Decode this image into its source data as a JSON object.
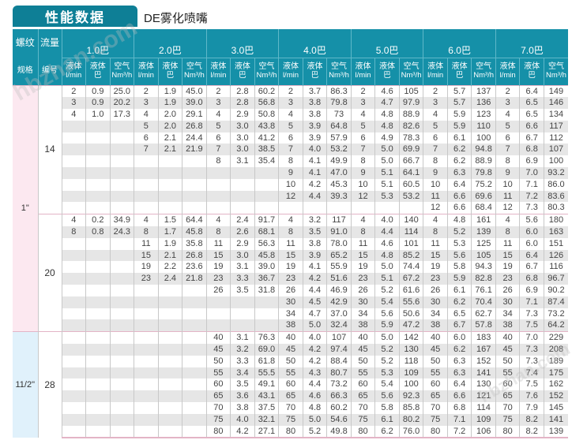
{
  "title": "性能数据",
  "subtitle": "DE雾化喷嘴",
  "watermark": "hbzhan.com",
  "colors": {
    "header_bg": "#1590a8",
    "title_bg": "#0e7f96",
    "pink": "#fce8f0",
    "blue": "#e0f1fb",
    "stripe": "#e6e6e6"
  },
  "header": {
    "spec_top": "螺纹",
    "spec_bottom": "规格",
    "flow_top": "流量",
    "flow_bottom": "编号",
    "pressures": [
      "1.0巴",
      "2.0巴",
      "3.0巴",
      "4.0巴",
      "5.0巴",
      "6.0巴",
      "7.0巴"
    ],
    "sub": [
      {
        "top": "液体",
        "bottom": "l/min"
      },
      {
        "top": "液体",
        "bottom": "巴"
      },
      {
        "top": "空气",
        "bottom": "Nm³/h"
      }
    ]
  },
  "sections": [
    {
      "spec": "1\"",
      "flow": "14",
      "rows": [
        [
          "2",
          "0.9",
          "25.0",
          "2",
          "1.9",
          "45.0",
          "2",
          "2.8",
          "60.2",
          "2",
          "3.7",
          "86.3",
          "2",
          "4.6",
          "105",
          "2",
          "5.7",
          "137",
          "2",
          "6.4",
          "149"
        ],
        [
          "3",
          "0.9",
          "20.2",
          "3",
          "1.9",
          "39.0",
          "3",
          "2.8",
          "56.8",
          "3",
          "3.8",
          "79.8",
          "3",
          "4.7",
          "97.9",
          "3",
          "5.7",
          "136",
          "3",
          "6.5",
          "146"
        ],
        [
          "4",
          "1.0",
          "17.3",
          "4",
          "2.0",
          "29.1",
          "4",
          "2.9",
          "50.8",
          "4",
          "3.8",
          "73",
          "4",
          "4.8",
          "88.9",
          "4",
          "5.9",
          "123",
          "4",
          "6.5",
          "134"
        ],
        [
          "",
          "",
          "",
          "5",
          "2.0",
          "26.8",
          "5",
          "3.0",
          "43.8",
          "5",
          "3.9",
          "64.8",
          "5",
          "4.8",
          "82.6",
          "5",
          "5.9",
          "110",
          "5",
          "6.6",
          "117"
        ],
        [
          "",
          "",
          "",
          "6",
          "2.1",
          "24.4",
          "6",
          "3.0",
          "41.2",
          "6",
          "3.9",
          "57.9",
          "6",
          "4.9",
          "78.3",
          "6",
          "6.1",
          "100",
          "6",
          "6.7",
          "112"
        ],
        [
          "",
          "",
          "",
          "7",
          "2.1",
          "21.9",
          "7",
          "3.0",
          "38.5",
          "7",
          "4.0",
          "53.2",
          "7",
          "5.0",
          "69.9",
          "7",
          "6.2",
          "94.8",
          "7",
          "6.8",
          "107"
        ],
        [
          "",
          "",
          "",
          "",
          "",
          "",
          "8",
          "3.1",
          "35.4",
          "8",
          "4.1",
          "49.9",
          "8",
          "5.0",
          "66.7",
          "8",
          "6.2",
          "88.9",
          "8",
          "6.9",
          "100"
        ],
        [
          "",
          "",
          "",
          "",
          "",
          "",
          "",
          "",
          "",
          "9",
          "4.1",
          "47.0",
          "9",
          "5.1",
          "64.1",
          "9",
          "6.3",
          "79.8",
          "9",
          "7.0",
          "93.2"
        ],
        [
          "",
          "",
          "",
          "",
          "",
          "",
          "",
          "",
          "",
          "10",
          "4.2",
          "45.3",
          "10",
          "5.1",
          "60.5",
          "10",
          "6.4",
          "75.2",
          "10",
          "7.1",
          "86.0"
        ],
        [
          "",
          "",
          "",
          "",
          "",
          "",
          "",
          "",
          "",
          "12",
          "4.4",
          "39.3",
          "12",
          "5.3",
          "53.2",
          "11",
          "6.6",
          "69.6",
          "11",
          "7.2",
          "83.6"
        ],
        [
          "",
          "",
          "",
          "",
          "",
          "",
          "",
          "",
          "",
          "",
          "",
          "",
          "",
          "",
          "",
          "12",
          "6.6",
          "68.4",
          "12",
          "7.3",
          "80.3"
        ]
      ]
    },
    {
      "spec": "1\"",
      "flow": "20",
      "rows": [
        [
          "4",
          "0.2",
          "34.9",
          "4",
          "1.5",
          "64.4",
          "4",
          "2.4",
          "91.7",
          "4",
          "3.2",
          "117",
          "4",
          "4.0",
          "140",
          "4",
          "4.8",
          "161",
          "4",
          "5.6",
          "180"
        ],
        [
          "8",
          "0.8",
          "24.3",
          "8",
          "1.7",
          "45.8",
          "8",
          "2.6",
          "68.1",
          "8",
          "3.5",
          "91.0",
          "8",
          "4.4",
          "114",
          "8",
          "5.2",
          "139",
          "8",
          "6.0",
          "163"
        ],
        [
          "",
          "",
          "",
          "11",
          "1.9",
          "35.8",
          "11",
          "2.9",
          "56.3",
          "11",
          "3.8",
          "78.0",
          "11",
          "4.6",
          "101",
          "11",
          "5.3",
          "125",
          "11",
          "6.0",
          "151"
        ],
        [
          "",
          "",
          "",
          "15",
          "2.1",
          "26.8",
          "15",
          "3.0",
          "45.8",
          "15",
          "3.9",
          "65.2",
          "15",
          "4.8",
          "85.2",
          "15",
          "5.6",
          "105",
          "15",
          "6.4",
          "126"
        ],
        [
          "",
          "",
          "",
          "19",
          "2.2",
          "23.6",
          "19",
          "3.1",
          "39.0",
          "19",
          "4.1",
          "55.9",
          "19",
          "5.0",
          "74.4",
          "19",
          "5.8",
          "94.3",
          "19",
          "6.7",
          "116"
        ],
        [
          "",
          "",
          "",
          "23",
          "2.4",
          "21.8",
          "23",
          "3.3",
          "36.7",
          "23",
          "4.2",
          "51.6",
          "23",
          "5.1",
          "67.2",
          "23",
          "5.9",
          "82.8",
          "23",
          "6.8",
          "96.7"
        ],
        [
          "",
          "",
          "",
          "",
          "",
          "",
          "26",
          "3.5",
          "31.8",
          "26",
          "4.4",
          "46.9",
          "26",
          "5.2",
          "61.6",
          "26",
          "6.1",
          "76.1",
          "26",
          "6.9",
          "90.2"
        ],
        [
          "",
          "",
          "",
          "",
          "",
          "",
          "",
          "",
          "",
          "30",
          "4.5",
          "42.9",
          "30",
          "5.4",
          "55.6",
          "30",
          "6.2",
          "70.4",
          "30",
          "7.1",
          "87.4"
        ],
        [
          "",
          "",
          "",
          "",
          "",
          "",
          "",
          "",
          "",
          "34",
          "4.7",
          "37.0",
          "34",
          "5.6",
          "50.6",
          "34",
          "6.5",
          "62.7",
          "34",
          "7.3",
          "73.2"
        ],
        [
          "",
          "",
          "",
          "",
          "",
          "",
          "",
          "",
          "",
          "38",
          "5.0",
          "32.4",
          "38",
          "5.9",
          "47.2",
          "38",
          "6.7",
          "57.8",
          "38",
          "7.5",
          "64.2"
        ]
      ]
    },
    {
      "spec": "11/2\"",
      "flow": "28",
      "rows": [
        [
          "",
          "",
          "",
          "",
          "",
          "",
          "40",
          "3.1",
          "76.3",
          "40",
          "4.0",
          "107",
          "40",
          "5.0",
          "142",
          "40",
          "6.0",
          "183",
          "40",
          "7.0",
          "229"
        ],
        [
          "",
          "",
          "",
          "",
          "",
          "",
          "45",
          "3.2",
          "69.0",
          "45",
          "4.2",
          "97.4",
          "45",
          "5.2",
          "130",
          "45",
          "6.2",
          "167",
          "45",
          "7.3",
          "208"
        ],
        [
          "",
          "",
          "",
          "",
          "",
          "",
          "50",
          "3.3",
          "61.8",
          "50",
          "4.2",
          "88.4",
          "50",
          "5.2",
          "118",
          "50",
          "6.3",
          "152",
          "50",
          "7.3",
          "189"
        ],
        [
          "",
          "",
          "",
          "",
          "",
          "",
          "55",
          "3.4",
          "55.5",
          "55",
          "4.3",
          "80.7",
          "55",
          "5.3",
          "109",
          "55",
          "6.3",
          "141",
          "55",
          "7.4",
          "175"
        ],
        [
          "",
          "",
          "",
          "",
          "",
          "",
          "60",
          "3.5",
          "49.1",
          "60",
          "4.4",
          "73.2",
          "60",
          "5.4",
          "100",
          "60",
          "6.4",
          "130",
          "60",
          "7.5",
          "162"
        ],
        [
          "",
          "",
          "",
          "",
          "",
          "",
          "65",
          "3.6",
          "43.1",
          "65",
          "4.6",
          "66.3",
          "65",
          "5.6",
          "92.3",
          "65",
          "6.6",
          "121",
          "65",
          "7.6",
          "152"
        ],
        [
          "",
          "",
          "",
          "",
          "",
          "",
          "70",
          "3.8",
          "37.5",
          "70",
          "4.8",
          "60.2",
          "70",
          "5.8",
          "85.8",
          "70",
          "6.8",
          "114",
          "70",
          "7.9",
          "145"
        ],
        [
          "",
          "",
          "",
          "",
          "",
          "",
          "75",
          "4.0",
          "32.1",
          "75",
          "5.0",
          "54.6",
          "75",
          "6.1",
          "80.2",
          "75",
          "7.1",
          "109",
          "75",
          "8.2",
          "141"
        ],
        [
          "",
          "",
          "",
          "",
          "",
          "",
          "80",
          "4.2",
          "27.1",
          "80",
          "5.2",
          "49.8",
          "80",
          "6.2",
          "76.0",
          "80",
          "7.2",
          "106",
          "80",
          "8.2",
          "139"
        ]
      ]
    }
  ]
}
